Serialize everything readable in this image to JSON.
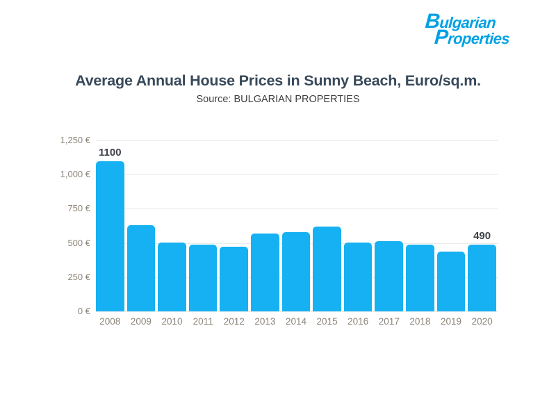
{
  "logo": {
    "line1": "Bulgarian",
    "line2": "Properties"
  },
  "header": {
    "title": "Average Annual House Prices in Sunny Beach, Euro/sq.m.",
    "subtitle": "Source: BULGARIAN PROPERTIES"
  },
  "colors": {
    "bar": "#16b1f2",
    "logo": "#00a1e4",
    "title": "#38495a",
    "subtitle": "#3e3e3e",
    "axis_labels": "#8c8479",
    "grid": "#eaeaea",
    "data_label": "#3d4248"
  },
  "chart_data": {
    "type": "bar",
    "title": "Average Annual House Prices in Sunny Beach, Euro/sq.m.",
    "subtitle": "Source: BULGARIAN PROPERTIES",
    "categories": [
      "2008",
      "2009",
      "2010",
      "2011",
      "2012",
      "2013",
      "2014",
      "2015",
      "2016",
      "2017",
      "2018",
      "2019",
      "2020"
    ],
    "values": [
      1100,
      630,
      505,
      490,
      475,
      570,
      580,
      620,
      505,
      515,
      490,
      435,
      490
    ],
    "xlabel": "",
    "ylabel": "",
    "ylim": [
      0,
      1250
    ],
    "yticks": [
      0,
      250,
      500,
      750,
      1000,
      1250
    ],
    "ytick_labels": [
      "0 €",
      "250 €",
      "500 €",
      "750 €",
      "1,000 €",
      "1,250 €"
    ],
    "grid": "horizontal",
    "legend": "none",
    "annotations": [
      {
        "category": "2008",
        "text": "1100"
      },
      {
        "category": "2020",
        "text": "490"
      }
    ]
  }
}
